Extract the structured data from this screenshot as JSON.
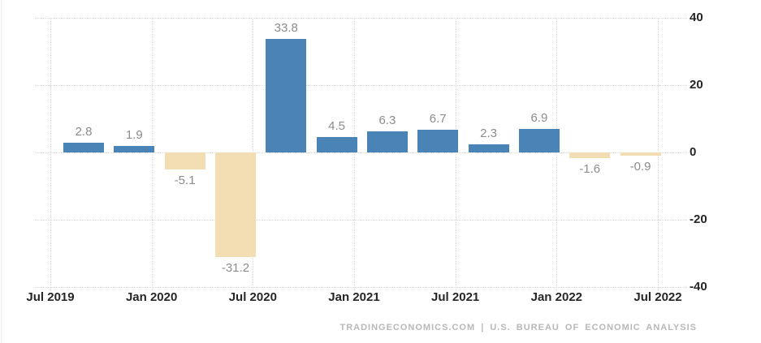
{
  "chart_data": {
    "type": "bar",
    "title": "",
    "xlabel": "",
    "ylabel": "",
    "categories": [
      "2019-Q3",
      "2019-Q4",
      "2020-Q1",
      "2020-Q2",
      "2020-Q3",
      "2020-Q4",
      "2021-Q1",
      "2021-Q2",
      "2021-Q3",
      "2021-Q4",
      "2022-Q1",
      "2022-Q2"
    ],
    "values": [
      2.8,
      1.9,
      -5.1,
      -31.2,
      33.8,
      4.5,
      6.3,
      6.7,
      2.3,
      6.9,
      -1.6,
      -0.9
    ],
    "value_labels": [
      "2.8",
      "1.9",
      "-5.1",
      "-31.2",
      "33.8",
      "4.5",
      "6.3",
      "6.7",
      "2.3",
      "6.9",
      "-1.6",
      "-0.9"
    ],
    "x_tick_labels": [
      "Jul 2019",
      "Jan 2020",
      "Jul 2020",
      "Jan 2021",
      "Jul 2021",
      "Jan 2022",
      "Jul 2022"
    ],
    "y_tick_labels": [
      "40",
      "20",
      "0",
      "-20",
      "-40"
    ],
    "y_tick_values": [
      40,
      20,
      0,
      -20,
      -40
    ],
    "ylim": [
      -40,
      40
    ],
    "grid": "dotted",
    "legend": "none",
    "colors": {
      "positive_bar": "#4a83b5",
      "negative_bar": "#f3ddb2",
      "value_label": "#8c8c8c",
      "axis_label": "#262626",
      "gridline": "#d9d9d9",
      "footer_text": "#b8b8b8"
    }
  },
  "footer": {
    "attribution": "TRADINGECONOMICS.COM | U.S. BUREAU OF ECONOMIC ANALYSIS"
  }
}
